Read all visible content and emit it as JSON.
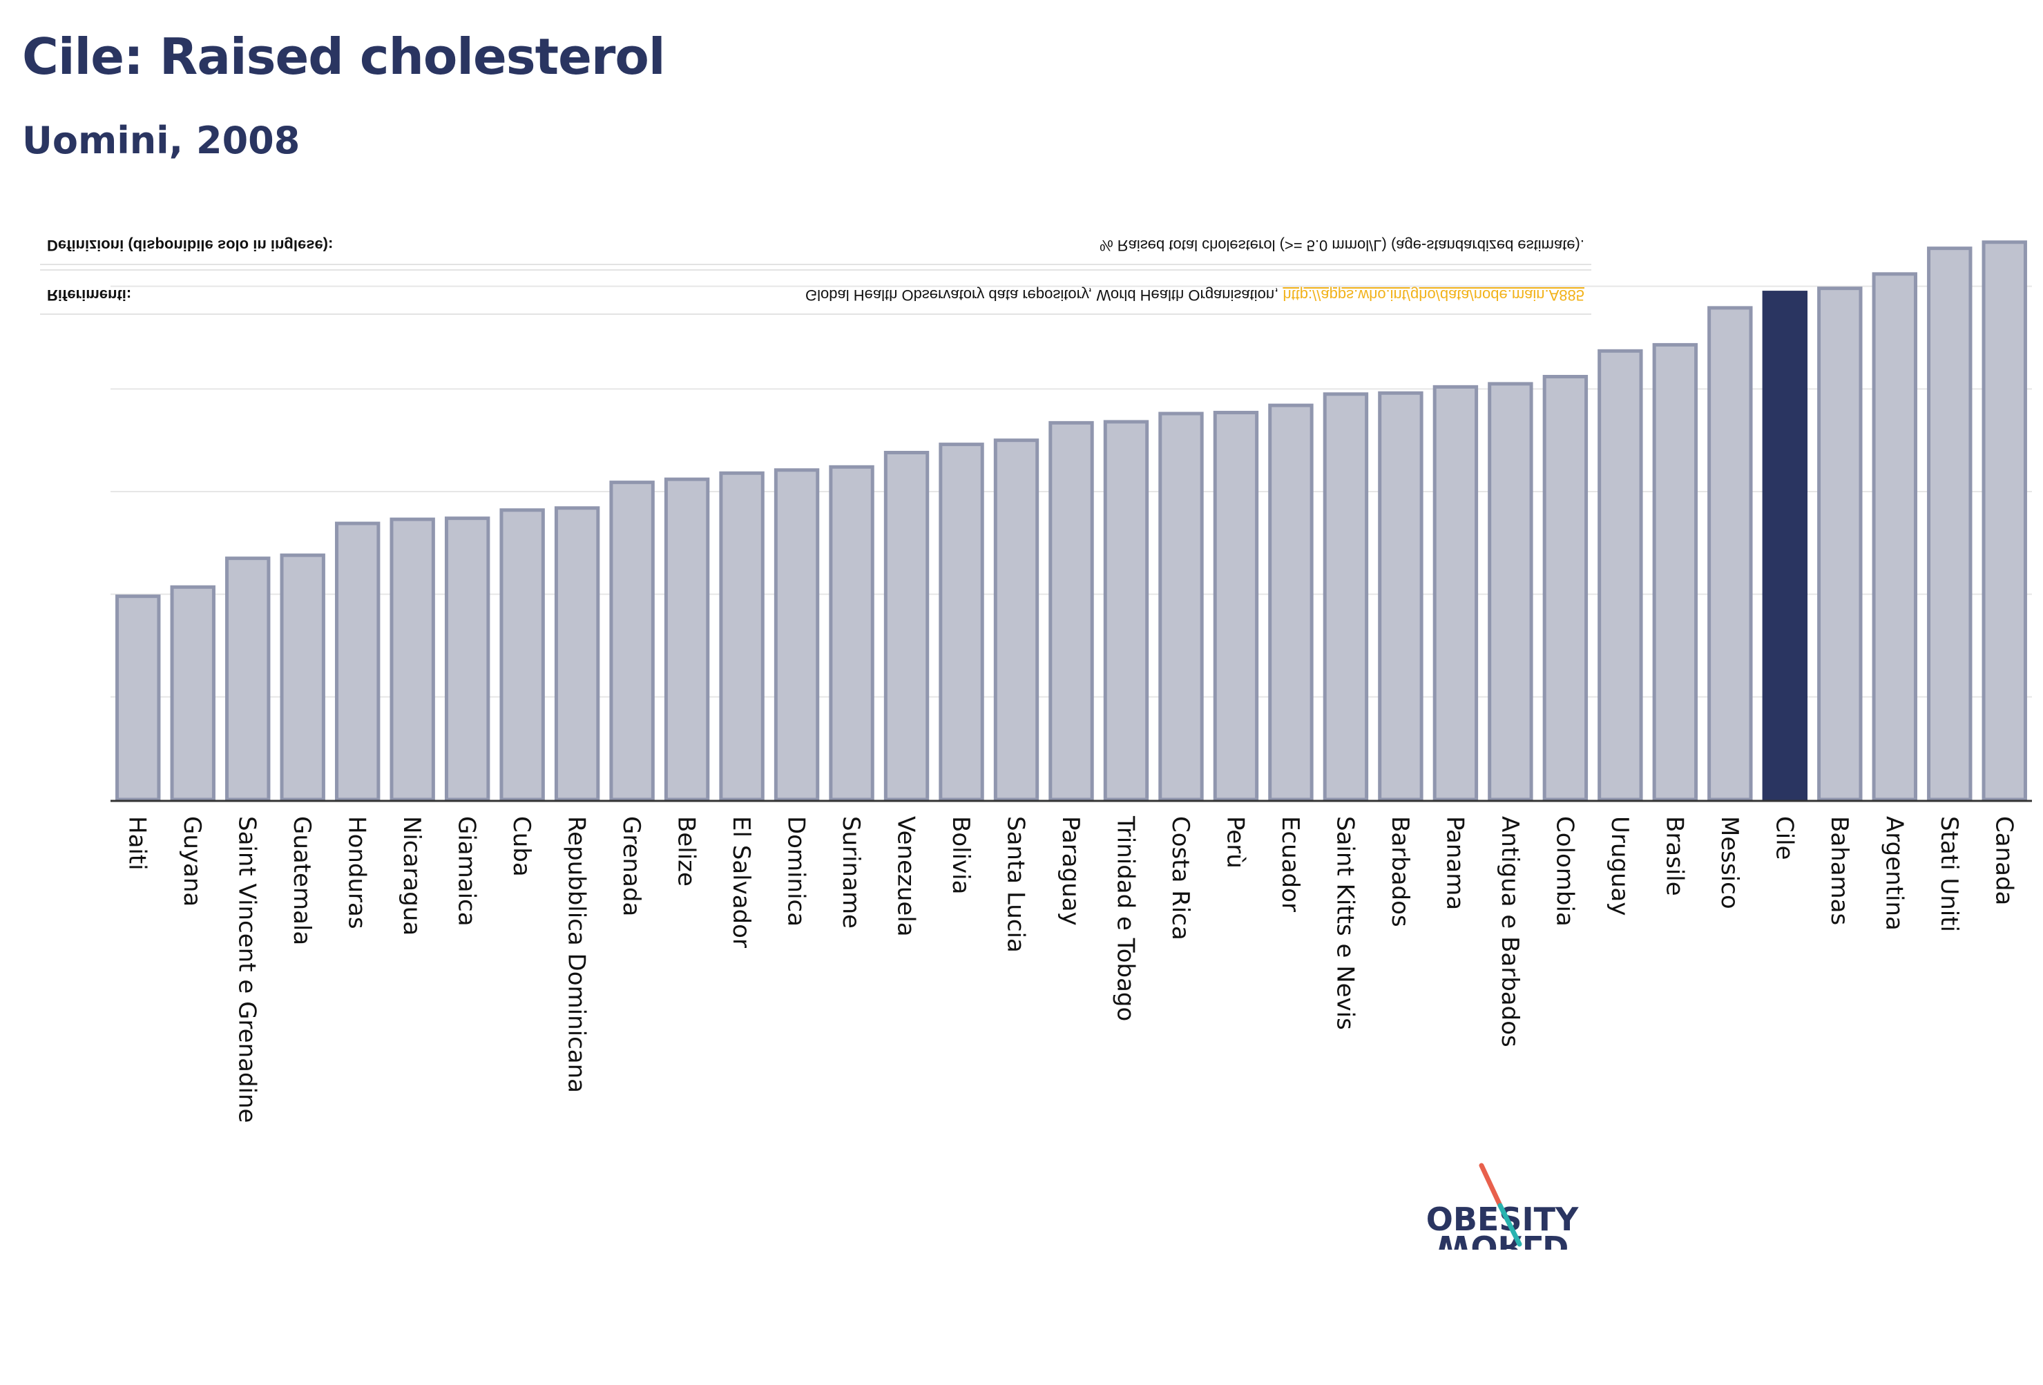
{
  "header": {
    "title": "Cile: Raised cholesterol",
    "subtitle": "Uomini, 2008"
  },
  "info": {
    "definitions_label": "Definizioni (disponibile solo in inglese):",
    "definitions_text": "% Raised total cholesterol (>= 5.0 mmol/L) (age-standardized estimate).",
    "references_label": "Riferimenti:",
    "references_text": "Global Health Observatory data repository, World Health Organisation, ",
    "references_link": "http://apps.who.int/gho/data/node.main.A885"
  },
  "logo": {
    "line1": "OBESITY",
    "line2": "WORLD"
  },
  "colors": {
    "bar": "#bfc2cf",
    "bar_stroke": "#9096ae",
    "highlight": "#2a3561",
    "grid": "#e6e6e6",
    "axis": "#333333",
    "logo_slash_red": "#e8604c",
    "logo_slash_teal": "#29b3b0"
  },
  "chart_data": {
    "type": "bar",
    "highlight": "Cile",
    "categories": [
      "Haiti",
      "Guyana",
      "Saint Vincent e Grenadine",
      "Guatemala",
      "Honduras",
      "Nicaragua",
      "Giamaica",
      "Cuba",
      "Repubblica Dominicana",
      "Grenada",
      "Belize",
      "El Salvador",
      "Dominica",
      "Suriname",
      "Venezuela",
      "Bolivia",
      "Santa Lucia",
      "Paraguay",
      "Trinidad e Tobago",
      "Costa Rica",
      "Perù",
      "Ecuador",
      "Saint Kitts e Nevis",
      "Barbados",
      "Panama",
      "Antigua e Barbados",
      "Colombia",
      "Uruguay",
      "Brasile",
      "Messico",
      "Cile",
      "Bahamas",
      "Argentina",
      "Stati Uniti",
      "Canada"
    ],
    "values": [
      19.8,
      20.7,
      23.5,
      23.8,
      26.9,
      27.3,
      27.4,
      28.2,
      28.4,
      30.9,
      31.2,
      31.8,
      32.1,
      32.4,
      33.8,
      34.6,
      35.0,
      36.7,
      36.8,
      37.6,
      37.7,
      38.4,
      39.5,
      39.6,
      40.2,
      40.5,
      41.2,
      43.7,
      44.3,
      47.9,
      49.4,
      49.8,
      51.2,
      53.7,
      54.3
    ],
    "ylim": [
      0,
      60
    ],
    "grid": true,
    "gridlines": [
      10,
      20,
      30,
      40,
      50
    ]
  }
}
